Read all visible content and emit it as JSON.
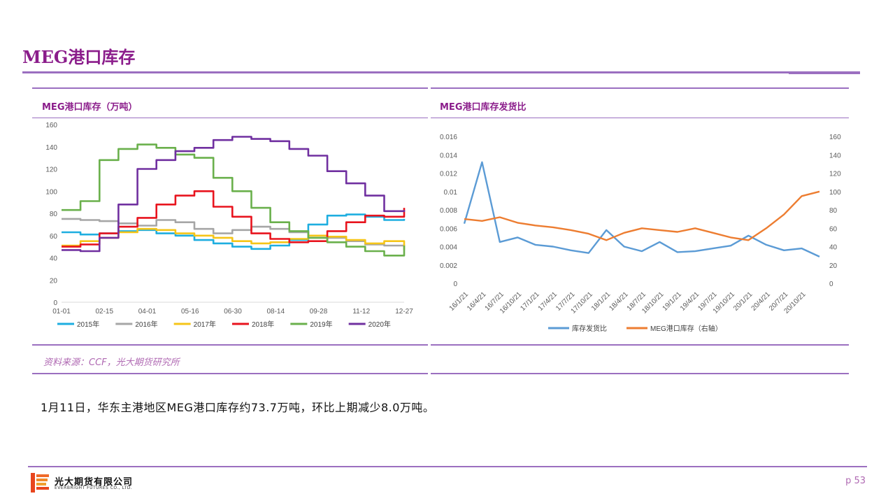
{
  "page": {
    "title": "MEG港口库存",
    "source_note": "资料来源：CCF，光大期货研究所",
    "commentary": "1月11日，华东主港地区MEG港口库存约73.7万吨，环比上期减少8.0万吨。",
    "page_number": "p 53",
    "company_cn": "光大期货有限公司",
    "company_en": "EVERBRIGHT FUTURES CO., LTD.",
    "theme_color": "#8b1d8b",
    "divider_color": "#9b6fc0"
  },
  "chart_data": [
    {
      "type": "line",
      "title": "MEG港口库存（万吨）",
      "x_ticks": [
        "01-01",
        "02-15",
        "04-01",
        "05-16",
        "06-30",
        "08-14",
        "09-28",
        "11-12",
        "12-27"
      ],
      "ylim": [
        0,
        160
      ],
      "y_ticks": [
        0,
        20,
        40,
        60,
        80,
        100,
        120,
        140,
        160
      ],
      "legend_position": "bottom",
      "grid": false,
      "series": [
        {
          "name": "2015年",
          "color": "#1eaee0",
          "day": [
            0,
            20,
            40,
            60,
            80,
            100,
            120,
            140,
            160,
            180,
            200,
            220,
            240,
            260,
            280,
            300,
            320,
            340,
            361
          ],
          "values": [
            63,
            61,
            62,
            64,
            65,
            62,
            60,
            56,
            53,
            50,
            48,
            51,
            56,
            70,
            78,
            79,
            77,
            74,
            75
          ]
        },
        {
          "name": "2016年",
          "color": "#a6a6a6",
          "day": [
            0,
            20,
            40,
            60,
            80,
            100,
            120,
            140,
            160,
            180,
            200,
            220,
            240,
            260,
            280,
            300,
            320,
            340,
            361
          ],
          "values": [
            75,
            74,
            73,
            71,
            69,
            74,
            72,
            66,
            62,
            65,
            68,
            66,
            63,
            60,
            58,
            55,
            52,
            51,
            52
          ]
        },
        {
          "name": "2017年",
          "color": "#f5c518",
          "day": [
            0,
            20,
            40,
            60,
            80,
            100,
            120,
            140,
            160,
            180,
            200,
            220,
            240,
            260,
            280,
            300,
            320,
            340,
            361
          ],
          "values": [
            51,
            55,
            58,
            63,
            66,
            65,
            62,
            60,
            58,
            55,
            53,
            54,
            57,
            60,
            59,
            56,
            53,
            55,
            47
          ]
        },
        {
          "name": "2018年",
          "color": "#e8141e",
          "day": [
            0,
            20,
            40,
            60,
            80,
            100,
            120,
            140,
            160,
            180,
            200,
            220,
            240,
            260,
            280,
            300,
            320,
            340,
            361
          ],
          "values": [
            50,
            52,
            62,
            68,
            76,
            88,
            96,
            100,
            86,
            77,
            62,
            57,
            54,
            55,
            64,
            72,
            78,
            77,
            85
          ]
        },
        {
          "name": "2019年",
          "color": "#6ab04c",
          "day": [
            0,
            20,
            40,
            60,
            80,
            100,
            120,
            140,
            160,
            180,
            200,
            220,
            240,
            260,
            280,
            300,
            320,
            340,
            361
          ],
          "values": [
            83,
            91,
            128,
            138,
            142,
            139,
            133,
            130,
            112,
            100,
            85,
            72,
            64,
            58,
            54,
            50,
            46,
            42,
            51
          ]
        },
        {
          "name": "2020年",
          "color": "#7030a0",
          "day": [
            0,
            20,
            40,
            60,
            80,
            100,
            120,
            140,
            160,
            180,
            200,
            220,
            240,
            260,
            280,
            300,
            320,
            340,
            361
          ],
          "values": [
            47,
            46,
            58,
            88,
            120,
            128,
            136,
            139,
            146,
            149,
            147,
            145,
            138,
            132,
            118,
            107,
            96,
            82,
            83
          ]
        }
      ]
    },
    {
      "type": "line",
      "title": "MEG港口库存发货比",
      "x_ticks": [
        "16/1/21",
        "16/4/21",
        "16/7/21",
        "16/10/21",
        "17/1/21",
        "17/4/21",
        "17/7/21",
        "17/10/21",
        "18/1/21",
        "18/4/21",
        "18/7/21",
        "18/10/21",
        "19/1/21",
        "19/4/21",
        "19/7/21",
        "19/10/21",
        "20/1/21",
        "20/4/21",
        "20/7/21",
        "20/10/21"
      ],
      "ylim": [
        0,
        0.016
      ],
      "y_ticks": [
        0,
        0.002,
        0.004,
        0.006,
        0.008,
        0.01,
        0.012,
        0.014,
        0.016
      ],
      "y2lim": [
        0,
        160
      ],
      "y2_ticks": [
        0,
        20,
        40,
        60,
        80,
        100,
        120,
        140,
        160
      ],
      "legend_position": "bottom",
      "grid": false,
      "series": [
        {
          "name": "库存发货比",
          "color": "#5b9bd5",
          "axis": "left",
          "t": [
            0,
            1,
            2,
            3,
            4,
            5,
            6,
            7,
            8,
            9,
            10,
            11,
            12,
            13,
            14,
            15,
            16,
            17,
            18,
            19,
            20
          ],
          "values": [
            0.0065,
            0.0132,
            0.0045,
            0.005,
            0.0042,
            0.004,
            0.0036,
            0.0033,
            0.0058,
            0.004,
            0.0035,
            0.0045,
            0.0034,
            0.0035,
            0.0038,
            0.0041,
            0.0052,
            0.0042,
            0.0036,
            0.0038,
            0.0029
          ]
        },
        {
          "name": "MEG港口库存（右轴）",
          "color": "#ed7d31",
          "axis": "right",
          "t": [
            0,
            1,
            2,
            3,
            4,
            5,
            6,
            7,
            8,
            9,
            10,
            11,
            12,
            13,
            14,
            15,
            16,
            17,
            18,
            19,
            20
          ],
          "values": [
            70,
            68,
            72,
            66,
            63,
            61,
            58,
            54,
            47,
            55,
            60,
            58,
            56,
            60,
            55,
            50,
            47,
            60,
            75,
            95,
            100
          ]
        }
      ]
    }
  ]
}
